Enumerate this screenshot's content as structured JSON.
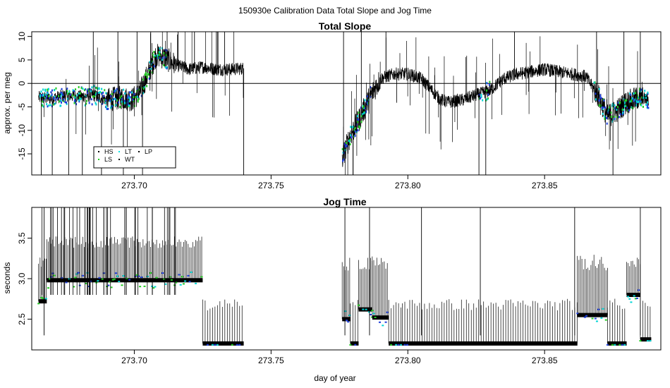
{
  "title": "150930e   Calibration Data Total Slope and Jog Time",
  "xlabel": "day of year",
  "chart_data": [
    {
      "type": "line",
      "title": "Total Slope",
      "ylabel": "approx. per meg",
      "xlim": [
        273.6625,
        273.8925
      ],
      "ylim": [
        -19.5,
        11
      ],
      "xticks": [
        "273.70",
        "273.75",
        "273.80",
        "273.85"
      ],
      "xtick_values": [
        273.7,
        273.75,
        273.8,
        273.85
      ],
      "yticks": [
        "-15",
        "-10",
        "-5",
        "0",
        "5",
        "10"
      ],
      "ytick_values": [
        -15,
        -10,
        -5,
        0,
        5,
        10
      ],
      "reference_line": 0,
      "legend": {
        "placement": "bottom-left",
        "entries": [
          {
            "label": "HS",
            "color": "#000000"
          },
          {
            "label": "LT",
            "color": "#00e5e5"
          },
          {
            "label": "LP",
            "color": "#000000"
          },
          {
            "label": "LS",
            "color": "#22cc22"
          },
          {
            "label": "WT",
            "color": "#000000"
          }
        ]
      },
      "segments": [
        {
          "x": [
            273.665,
            273.67,
            273.675,
            273.68,
            273.685,
            273.69,
            273.695,
            273.699,
            273.702,
            273.705,
            273.708,
            273.711,
            273.715,
            273.72,
            273.725,
            273.73,
            273.735,
            273.74
          ],
          "y": [
            -3,
            -3.2,
            -2.5,
            -2.8,
            -2.5,
            -3.5,
            -3,
            -3.5,
            -2,
            2,
            6,
            5.5,
            4,
            3,
            3.5,
            3,
            3,
            3.2
          ]
        },
        {
          "x": [
            273.776,
            273.779,
            273.782,
            273.786,
            273.79,
            273.795,
            273.8,
            273.805,
            273.808,
            273.812,
            273.815,
            273.82,
            273.825,
            273.83,
            273.835,
            273.84,
            273.845,
            273.85,
            273.855,
            273.86,
            273.865,
            273.87,
            273.873,
            273.876,
            273.88,
            273.885,
            273.888
          ],
          "y": [
            -16,
            -11,
            -8,
            -3,
            1,
            2,
            2,
            1,
            -1,
            -3.5,
            -4,
            -3.5,
            -2.5,
            -1.5,
            1,
            2,
            2.5,
            3,
            2.5,
            2,
            1.5,
            -3,
            -7,
            -6,
            -4,
            -3,
            -3.5
          ]
        }
      ],
      "spikes_x": [
        273.666,
        273.67,
        273.676,
        273.681,
        273.685,
        273.688,
        273.694,
        273.696,
        273.701,
        273.703,
        273.706,
        273.712,
        273.716,
        273.722,
        273.73,
        273.733,
        273.74,
        273.7765,
        273.78,
        273.783,
        273.792,
        273.826,
        273.8285,
        273.839,
        273.869,
        273.875,
        273.879,
        273.885
      ]
    },
    {
      "type": "line",
      "title": "Jog Time",
      "ylabel": "seconds",
      "xlim": [
        273.6625,
        273.8925
      ],
      "ylim": [
        2.12,
        3.88
      ],
      "xticks": [
        "273.70",
        "273.75",
        "273.80",
        "273.85"
      ],
      "xtick_values": [
        273.7,
        273.75,
        273.8,
        273.85
      ],
      "yticks": [
        "2.5",
        "3.0",
        "3.5"
      ],
      "ytick_values": [
        2.5,
        3.0,
        3.5
      ],
      "baseline_segments": [
        {
          "x": [
            273.665,
            273.668
          ],
          "y": [
            2.72,
            2.72
          ]
        },
        {
          "x": [
            273.668,
            273.725
          ],
          "y": [
            2.98,
            2.98
          ]
        },
        {
          "x": [
            273.725,
            273.74
          ],
          "y": [
            2.2,
            2.2
          ]
        },
        {
          "x": [
            273.776,
            273.779
          ],
          "y": [
            2.5,
            2.5
          ]
        },
        {
          "x": [
            273.779,
            273.782
          ],
          "y": [
            2.2,
            2.2
          ]
        },
        {
          "x": [
            273.782,
            273.787
          ],
          "y": [
            2.62,
            2.62
          ]
        },
        {
          "x": [
            273.787,
            273.793
          ],
          "y": [
            2.52,
            2.52
          ]
        },
        {
          "x": [
            273.793,
            273.798
          ],
          "y": [
            2.2,
            2.2
          ]
        },
        {
          "x": [
            273.798,
            273.862
          ],
          "y": [
            2.2,
            2.2
          ]
        },
        {
          "x": [
            273.862,
            273.873
          ],
          "y": [
            2.55,
            2.55
          ]
        },
        {
          "x": [
            273.873,
            273.88
          ],
          "y": [
            2.2,
            2.2
          ]
        },
        {
          "x": [
            273.88,
            273.885
          ],
          "y": [
            2.8,
            2.8
          ]
        },
        {
          "x": [
            273.885,
            273.889
          ],
          "y": [
            2.25,
            2.25
          ]
        }
      ]
    }
  ]
}
